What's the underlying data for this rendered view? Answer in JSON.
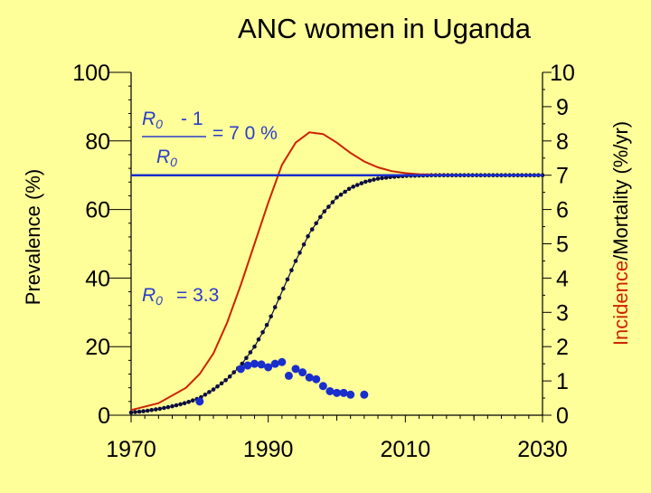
{
  "colors": {
    "background": "#ffff99",
    "axis": "#000000",
    "incidence_curve": "#cc2200",
    "threshold_line": "#1a2ecc",
    "observed_points": "#1a2ecc",
    "model_points": "#0d0d40",
    "annotation": "#2a3ec8",
    "incidence_word": "#cc2200"
  },
  "chart_data": {
    "type": "line",
    "title": "ANC women in Uganda",
    "ylabel_left": "Prevalence (%)",
    "ylabel_right_prefix": "Incidence",
    "ylabel_right_suffix": "/Mortality (%/yr)",
    "xlim": [
      1970,
      2030
    ],
    "ylim_left": [
      0,
      100
    ],
    "ylim_right": [
      0,
      10
    ],
    "x_ticks": [
      1970,
      1990,
      2010,
      2030
    ],
    "y_ticks_left": [
      0,
      20,
      40,
      60,
      80,
      100
    ],
    "y_ticks_right": [
      0,
      1,
      2,
      3,
      4,
      5,
      6,
      7,
      8,
      9,
      10
    ],
    "grid": false,
    "series": [
      {
        "axis": "left",
        "style": "dotted-line",
        "x": [
          1970,
          1972,
          1974,
          1976,
          1978,
          1980,
          1982,
          1984,
          1986,
          1988,
          1990,
          1992,
          1994,
          1996,
          1998,
          2000,
          2002,
          2004,
          2006,
          2008,
          2010,
          2014,
          2018,
          2022,
          2026,
          2030
        ],
        "y": [
          0.8,
          1.2,
          1.8,
          2.6,
          3.6,
          5,
          7.5,
          10.5,
          14.5,
          20,
          27,
          36,
          45,
          53,
          59,
          63.5,
          66.3,
          68,
          69,
          69.5,
          69.8,
          70,
          70,
          70,
          70,
          70
        ]
      },
      {
        "axis": "left",
        "style": "line",
        "x": [
          1970,
          1974,
          1978,
          1980,
          1982,
          1984,
          1986,
          1988,
          1990,
          1992,
          1994,
          1996,
          1998,
          2000,
          2002,
          2004,
          2006,
          2008,
          2010,
          2012,
          2015,
          2020,
          2030
        ],
        "y": [
          1.5,
          3.5,
          8,
          12,
          18,
          27,
          38,
          50,
          62,
          73,
          79.5,
          82.5,
          82,
          79.5,
          76.5,
          74,
          72.3,
          71.2,
          70.6,
          70.3,
          70.1,
          70,
          70
        ]
      },
      {
        "axis": "left",
        "style": "threshold",
        "x": [
          1970,
          2030
        ],
        "y": [
          70,
          70
        ]
      },
      {
        "axis": "left",
        "style": "points",
        "x": [
          1980,
          1986,
          1987,
          1988,
          1989,
          1990,
          1991,
          1992,
          1993,
          1994,
          1995,
          1996,
          1997,
          1998,
          1999,
          2000,
          2001,
          2002,
          2004
        ],
        "y": [
          4,
          13.5,
          14.5,
          15,
          14.8,
          14,
          15,
          15.5,
          11.5,
          13.5,
          12.5,
          11,
          10.5,
          8.5,
          7,
          6.5,
          6.5,
          6,
          6
        ]
      }
    ],
    "annotations": {
      "r0_symbol": "R",
      "r0_sub": "0",
      "minus_one": "- 1",
      "equals_70": "= 7 0 %",
      "r0_value": "= 3.3"
    }
  }
}
